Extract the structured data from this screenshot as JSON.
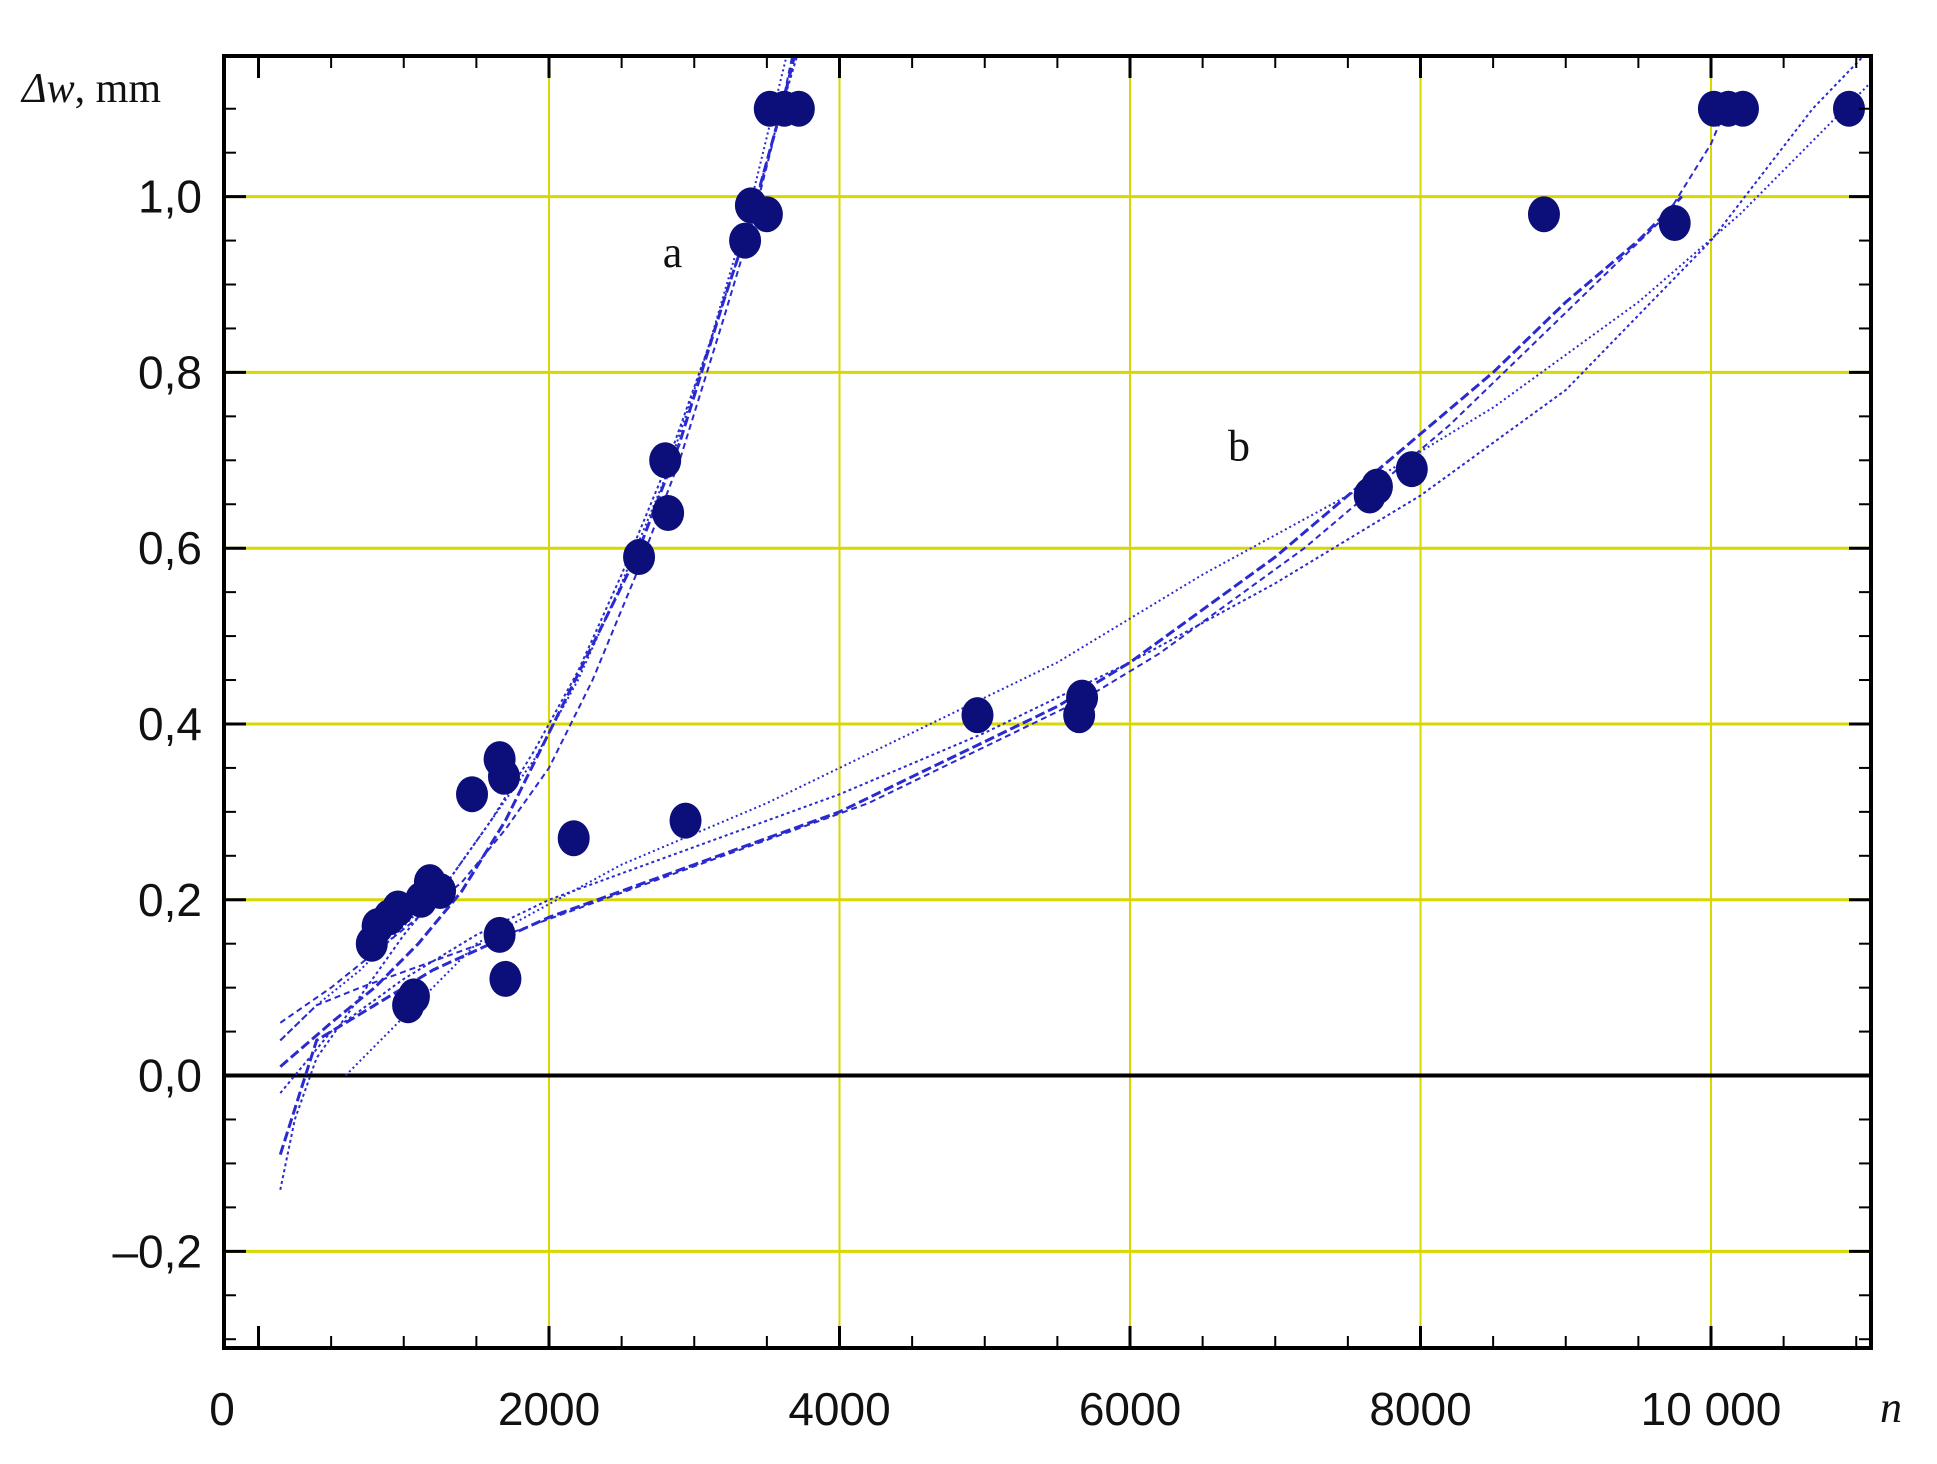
{
  "chart_data": {
    "type": "scatter",
    "title": "",
    "xlabel": "n",
    "ylabel_main": "Δw",
    "ylabel_unit": ", mm",
    "xlim": [
      -150,
      11200
    ],
    "ylim": [
      -0.31,
      1.16
    ],
    "x_ticks": [
      0,
      2000,
      4000,
      6000,
      8000,
      10000
    ],
    "x_tick_labels": [
      "0",
      "2000",
      "4000",
      "6000",
      "8000",
      "10 000"
    ],
    "y_ticks": [
      -0.2,
      0.0,
      0.2,
      0.4,
      0.6,
      0.8,
      1.0
    ],
    "y_tick_labels": [
      "–0,2",
      "0,0",
      "0,2",
      "0,4",
      "0,6",
      "0,8",
      "1,0"
    ],
    "grid": true,
    "grid_color": "#d8d800",
    "zero_line_color": "#000000",
    "point_color": "#0c0f7a",
    "line_color": "#2a2acf",
    "series": [
      {
        "name": "a",
        "label_pos": [
          2850,
          0.92
        ],
        "points": [
          [
            780,
            0.15
          ],
          [
            820,
            0.17
          ],
          [
            900,
            0.18
          ],
          [
            960,
            0.19
          ],
          [
            1030,
            0.08
          ],
          [
            1070,
            0.09
          ],
          [
            1120,
            0.2
          ],
          [
            1180,
            0.22
          ],
          [
            1250,
            0.21
          ],
          [
            1470,
            0.32
          ],
          [
            1660,
            0.36
          ],
          [
            1690,
            0.34
          ],
          [
            2620,
            0.59
          ],
          [
            2800,
            0.7
          ],
          [
            2820,
            0.64
          ],
          [
            3350,
            0.95
          ],
          [
            3390,
            0.99
          ],
          [
            3500,
            0.98
          ],
          [
            3520,
            1.1
          ],
          [
            3620,
            1.1
          ],
          [
            3720,
            1.1
          ]
        ],
        "curves": [
          {
            "x": [
              150,
              500,
              800,
              1100,
              1400,
              1700,
              2000,
              2300,
              2600,
              2900,
              3200,
              3400,
              3600,
              3750
            ],
            "y": [
              0.01,
              0.06,
              0.1,
              0.15,
              0.21,
              0.29,
              0.39,
              0.49,
              0.59,
              0.72,
              0.88,
              0.98,
              1.1,
              1.2
            ]
          },
          {
            "x": [
              150,
              500,
              800,
              1100,
              1400,
              1700,
              2000,
              2300,
              2600,
              2900,
              3200,
              3400,
              3600,
              3700
            ],
            "y": [
              0.06,
              0.1,
              0.14,
              0.18,
              0.22,
              0.28,
              0.35,
              0.45,
              0.57,
              0.7,
              0.86,
              0.97,
              1.1,
              1.18
            ]
          },
          {
            "x": [
              150,
              250,
              400,
              700,
              1000,
              1300,
              1600,
              1900,
              2200,
              2500,
              2800,
              3100,
              3400,
              3600,
              3780
            ],
            "y": [
              -0.13,
              -0.05,
              0.02,
              0.09,
              0.16,
              0.22,
              0.29,
              0.37,
              0.46,
              0.57,
              0.69,
              0.83,
              0.98,
              1.1,
              1.2
            ]
          },
          {
            "x": [
              150,
              400,
              700,
              1000,
              1300,
              1600,
              1900,
              2200,
              2500,
              2800,
              3100,
              3400,
              3650
            ],
            "y": [
              0.04,
              0.08,
              0.12,
              0.17,
              0.22,
              0.29,
              0.36,
              0.45,
              0.56,
              0.68,
              0.83,
              1.0,
              1.17
            ]
          }
        ]
      },
      {
        "name": "b",
        "label_pos": [
          6750,
          0.7
        ],
        "points": [
          [
            1660,
            0.16
          ],
          [
            1700,
            0.11
          ],
          [
            2170,
            0.27
          ],
          [
            2940,
            0.29
          ],
          [
            4950,
            0.41
          ],
          [
            5650,
            0.41
          ],
          [
            5670,
            0.43
          ],
          [
            7650,
            0.66
          ],
          [
            7700,
            0.67
          ],
          [
            7940,
            0.69
          ],
          [
            8850,
            0.98
          ],
          [
            9750,
            0.97
          ],
          [
            10020,
            1.1
          ],
          [
            10120,
            1.1
          ],
          [
            10220,
            1.1
          ],
          [
            10950,
            1.1
          ]
        ],
        "curves": [
          {
            "x": [
              150,
              400,
              800,
              1200,
              1600,
              2000,
              2500,
              3000,
              3500,
              4000,
              4500,
              5000,
              5500,
              6000,
              6500,
              7000,
              7500,
              8000,
              8500,
              9000,
              9500,
              9800
            ],
            "y": [
              -0.09,
              0.04,
              0.08,
              0.12,
              0.15,
              0.18,
              0.21,
              0.24,
              0.27,
              0.3,
              0.34,
              0.38,
              0.42,
              0.47,
              0.53,
              0.59,
              0.66,
              0.73,
              0.8,
              0.88,
              0.95,
              1.0
            ]
          },
          {
            "x": [
              150,
              400,
              700,
              1200,
              1700,
              2200,
              2700,
              3200,
              3700,
              4200,
              4700,
              5200,
              5700,
              6200,
              6700,
              7200,
              7700,
              8200,
              8700,
              9200,
              9700,
              10000,
              10150
            ],
            "y": [
              0.04,
              0.08,
              0.1,
              0.13,
              0.16,
              0.19,
              0.22,
              0.25,
              0.28,
              0.31,
              0.35,
              0.39,
              0.43,
              0.48,
              0.54,
              0.6,
              0.67,
              0.74,
              0.82,
              0.9,
              0.98,
              1.06,
              1.12
            ]
          },
          {
            "x": [
              150,
              500,
              1000,
              1500,
              2000,
              3000,
              4000,
              5000,
              6000,
              7000,
              8000,
              9000,
              10000,
              10700,
              11050
            ],
            "y": [
              -0.02,
              0.05,
              0.11,
              0.16,
              0.2,
              0.26,
              0.32,
              0.39,
              0.47,
              0.56,
              0.66,
              0.78,
              0.95,
              1.1,
              1.16
            ]
          },
          {
            "x": [
              600,
              1500,
              2500,
              3500,
              4500,
              5500,
              6500,
              7500,
              8500,
              9500,
              10200,
              11100
            ],
            "y": [
              0.0,
              0.15,
              0.24,
              0.31,
              0.39,
              0.47,
              0.57,
              0.66,
              0.76,
              0.88,
              0.98,
              1.13
            ]
          }
        ]
      }
    ]
  }
}
